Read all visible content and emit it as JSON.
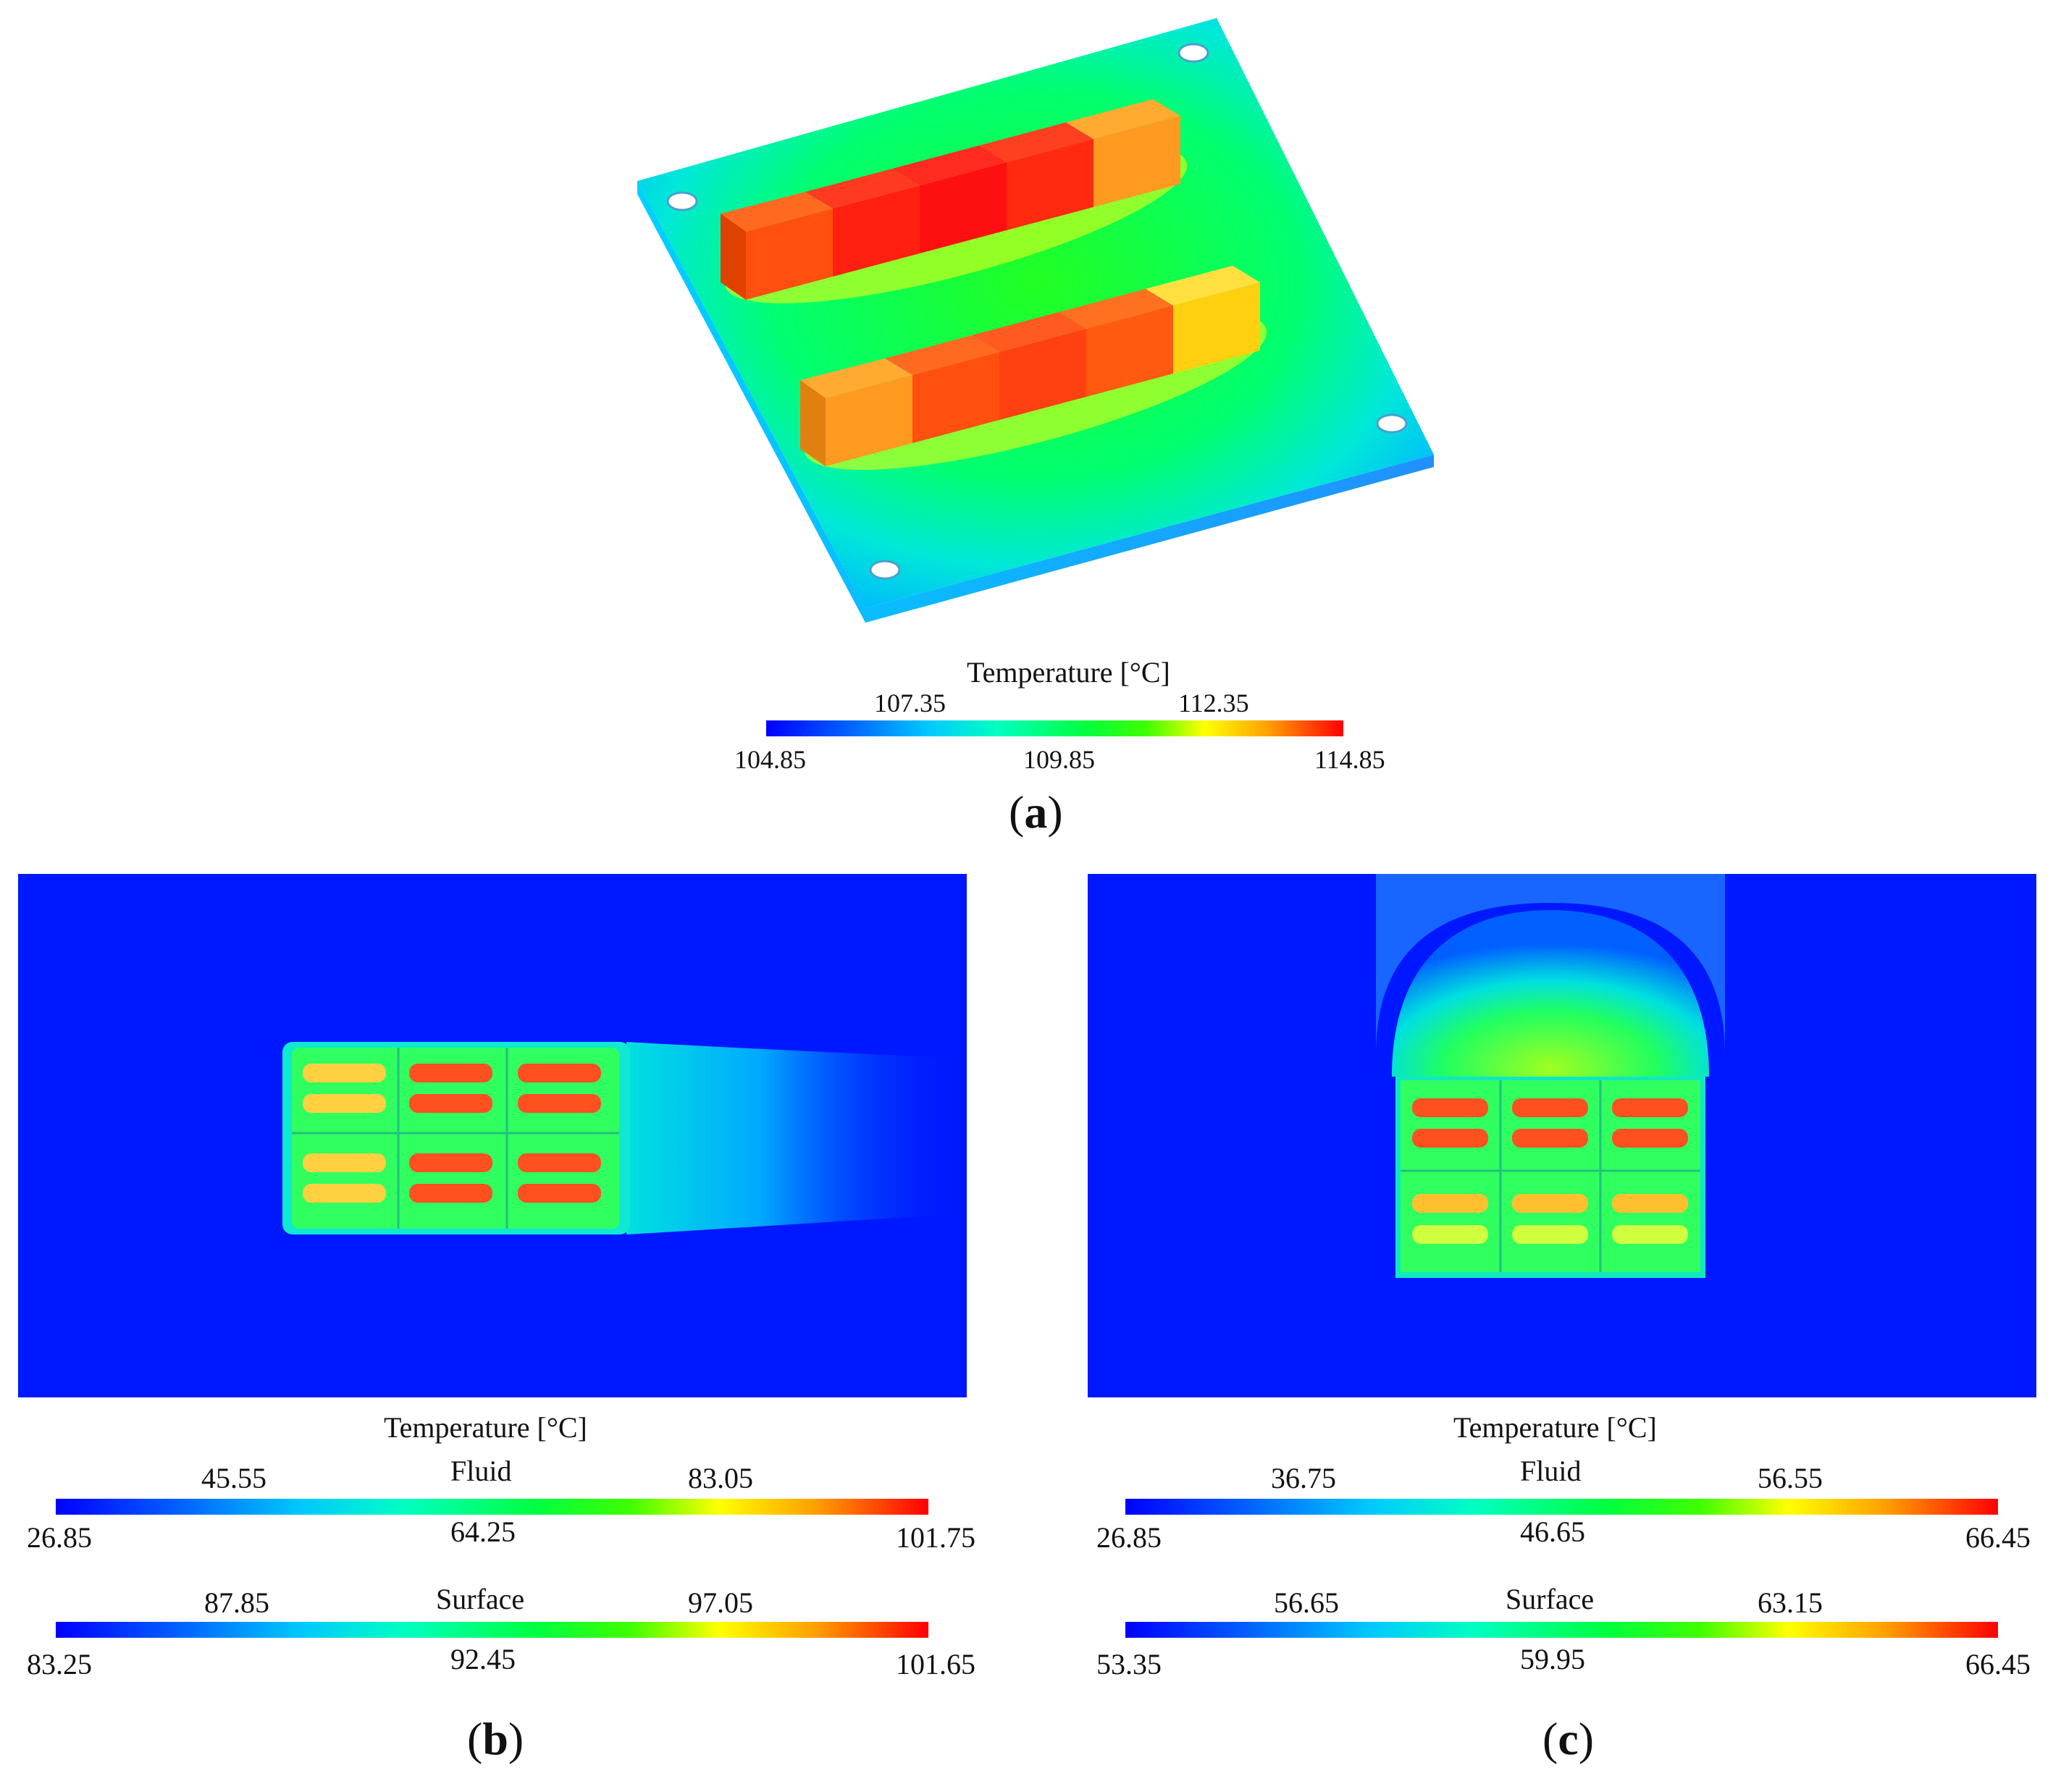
{
  "panels": [
    {
      "letter": "a",
      "colorbar": {
        "title": "Temperature [°C]",
        "ticks_top": [
          "107.35",
          "112.35"
        ],
        "ticks_bottom": [
          "104.85",
          "109.85",
          "114.85"
        ]
      }
    },
    {
      "letter": "b",
      "colorbar_title": "Temperature [°C]",
      "fluid": {
        "label": "Fluid",
        "ticks_top": [
          "45.55",
          "83.05"
        ],
        "ticks_bottom": [
          "26.85",
          "64.25",
          "101.75"
        ]
      },
      "surface": {
        "label": "Surface",
        "ticks_top": [
          "87.85",
          "97.05"
        ],
        "ticks_bottom": [
          "83.25",
          "92.45",
          "101.65"
        ]
      }
    },
    {
      "letter": "c",
      "colorbar_title": "Temperature [°C]",
      "fluid": {
        "label": "Fluid",
        "ticks_top": [
          "36.75",
          "56.55"
        ],
        "ticks_bottom": [
          "26.85",
          "46.65",
          "66.45"
        ]
      },
      "surface": {
        "label": "Surface",
        "ticks_top": [
          "56.65",
          "63.15"
        ],
        "ticks_bottom": [
          "53.35",
          "59.95",
          "66.45"
        ]
      }
    }
  ],
  "colors": {
    "cold": "#0018ff",
    "warm": "#00ff40",
    "hot": "#ff0000"
  }
}
